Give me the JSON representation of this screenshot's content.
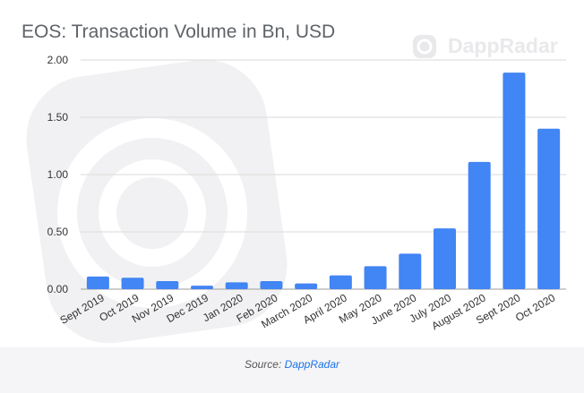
{
  "title": "EOS: Transaction Volume in Bn, USD",
  "watermark": "DappRadar",
  "source": {
    "prefix": "Source:",
    "link_text": "DappRadar"
  },
  "colors": {
    "bar": "#4285f4",
    "grid": "#dadada",
    "watermark": "#eeeef0"
  },
  "chart_data": {
    "type": "bar",
    "title": "EOS: Transaction Volume in Bn, USD",
    "categories": [
      "Sept 2019",
      "Oct 2019",
      "Nov 2019",
      "Dec 2019",
      "Jan 2020",
      "Feb 2020",
      "March 2020",
      "April 2020",
      "May 2020",
      "June 2020",
      "July 2020",
      "August 2020",
      "Sept 2020",
      "Oct 2020"
    ],
    "values": [
      0.11,
      0.1,
      0.07,
      0.03,
      0.06,
      0.07,
      0.05,
      0.12,
      0.2,
      0.31,
      0.53,
      1.11,
      1.89,
      1.4
    ],
    "yticks": [
      "0.00",
      "0.50",
      "1.00",
      "1.50",
      "2.00"
    ],
    "ylim": [
      0,
      2
    ],
    "xlabel": "",
    "ylabel": "",
    "grid": true,
    "legend": "none"
  }
}
